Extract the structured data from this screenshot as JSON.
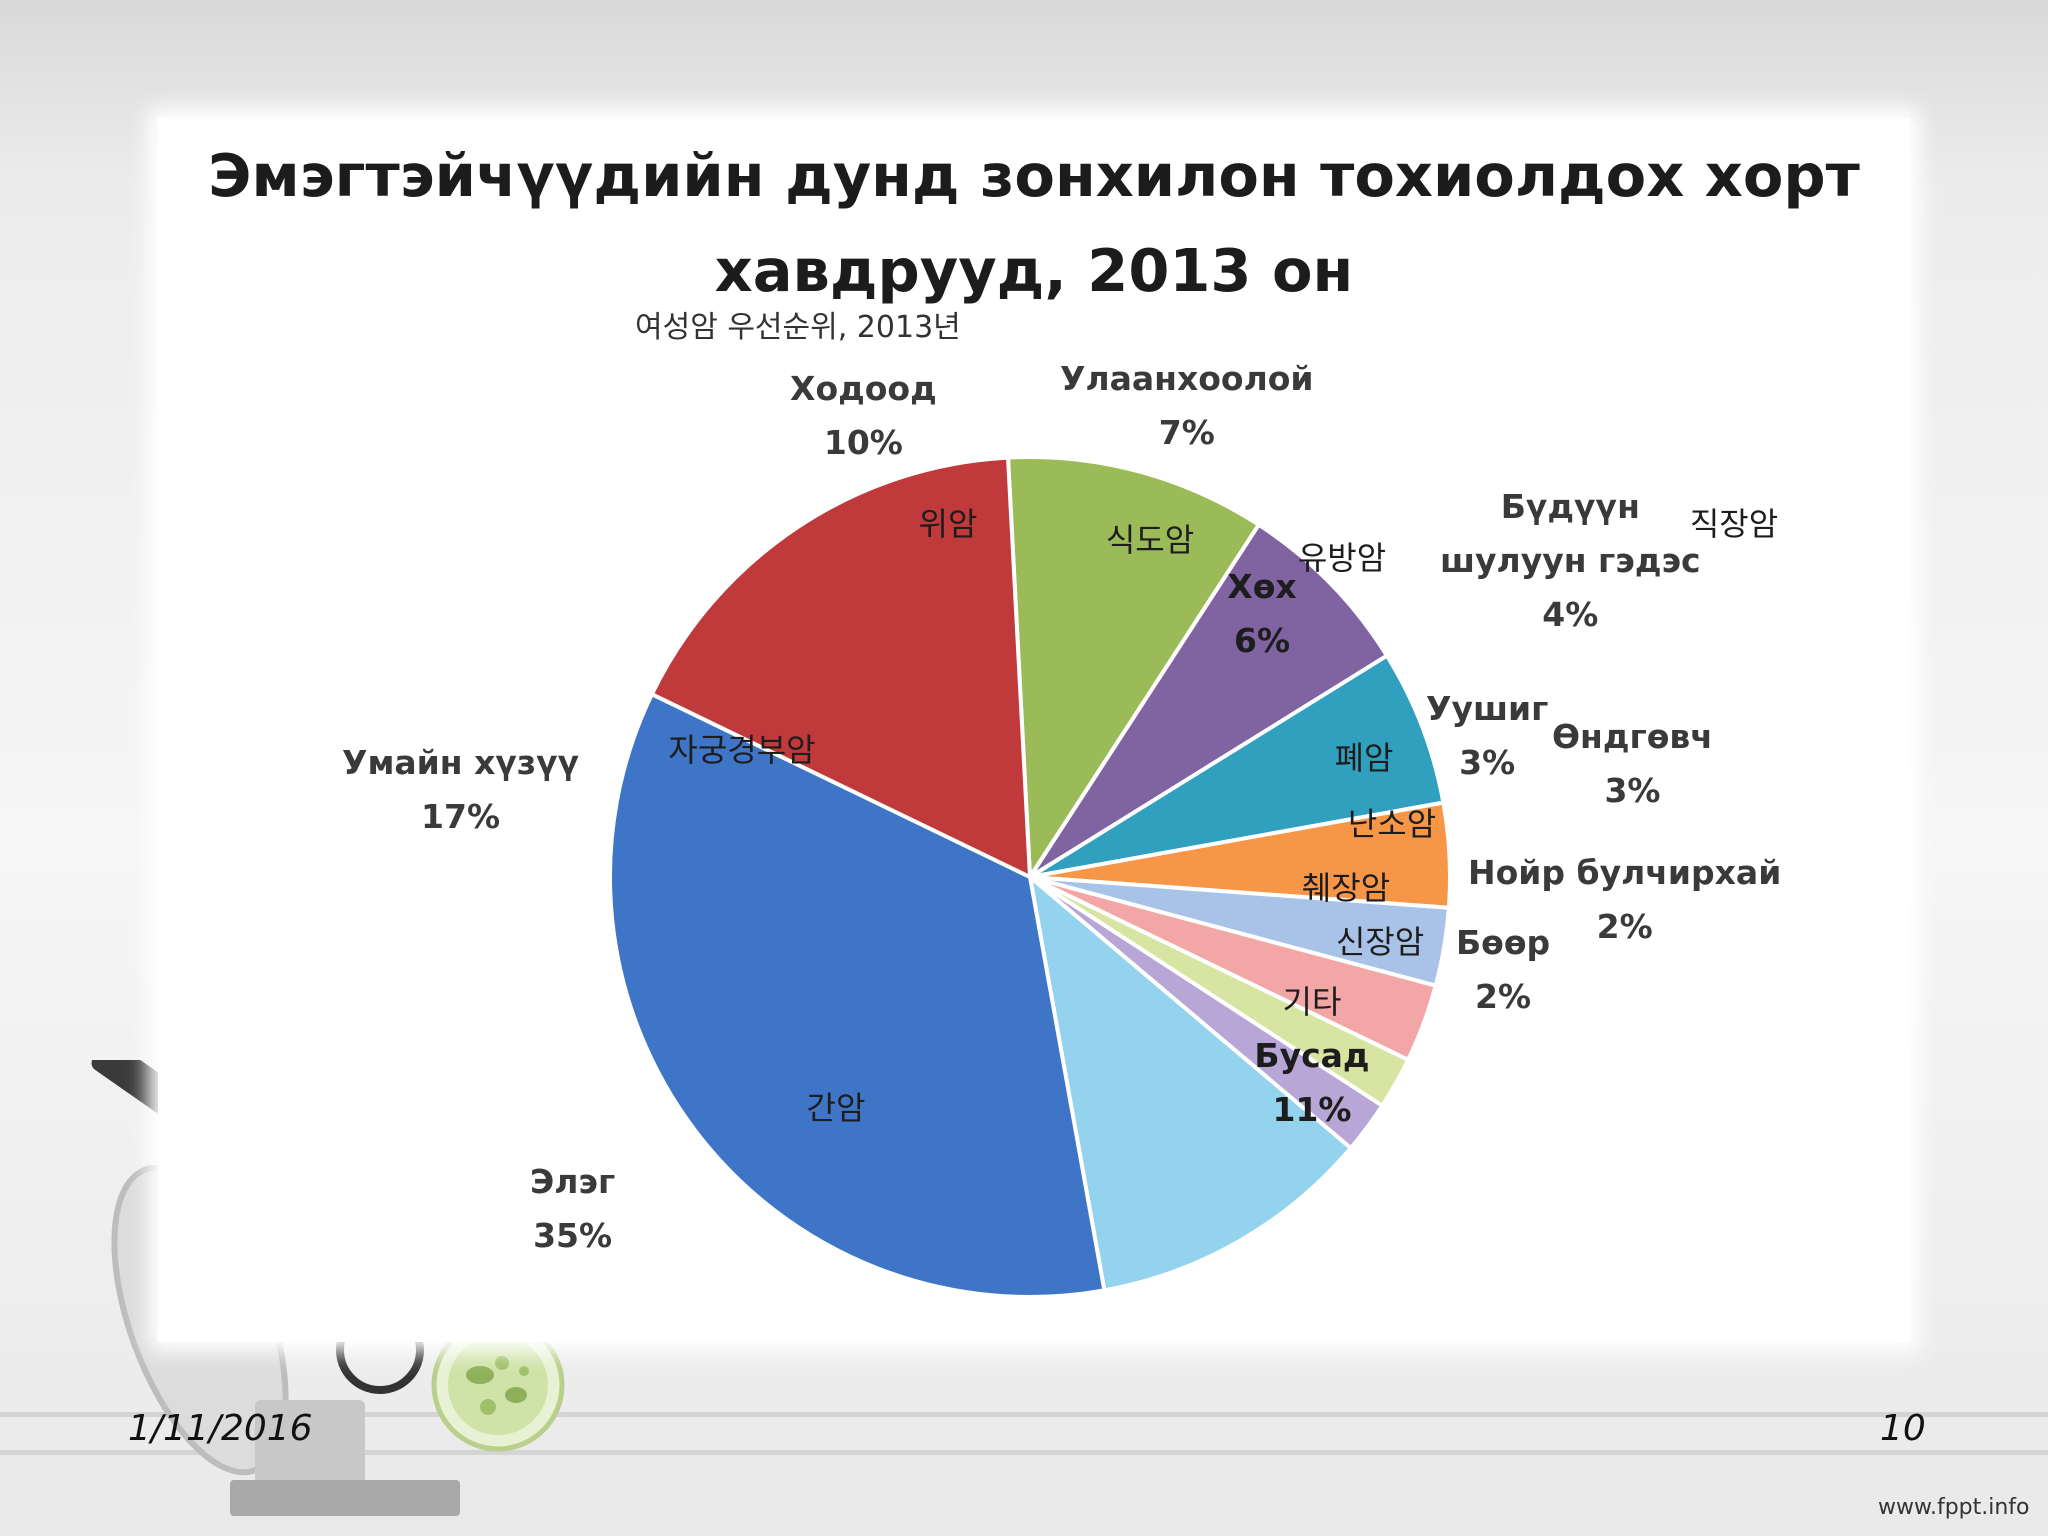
{
  "chart_data": {
    "type": "pie",
    "title": "Эмэгтэйчүүдийн дунд зонхилон тохиолдох хорт хавдрууд, 2013 он",
    "subtitle": "여성암 우선순위, 2013년",
    "slices": [
      {
        "id": "stomach",
        "label": "Ходоод",
        "korean": "위암",
        "value": 10,
        "pct_text": "10%",
        "color": "#9bbb59"
      },
      {
        "id": "esophagus",
        "label": "Улаанхоолой",
        "korean": "식도암",
        "value": 7,
        "pct_text": "7%",
        "color": "#8064a2"
      },
      {
        "id": "breast",
        "label": "Хөх",
        "korean": "유방암",
        "value": 6,
        "pct_text": "6%",
        "color": "#31a0bf"
      },
      {
        "id": "colorectal",
        "label": "Бүдүүн шулуун гэдэс",
        "korean": "직장암",
        "value": 4,
        "pct_text": "4%",
        "color": "#f79646"
      },
      {
        "id": "lung",
        "label": "Уушиг",
        "korean": "폐암",
        "value": 3,
        "pct_text": "3%",
        "color": "#a9c3e8"
      },
      {
        "id": "ovary",
        "label": "Өндгөвч",
        "korean": "난소암",
        "value": 3,
        "pct_text": "3%",
        "color": "#f2a6a6"
      },
      {
        "id": "pancreas",
        "label": "Нойр булчирхай",
        "korean": "췌장암",
        "value": 2,
        "pct_text": "2%",
        "color": "#d7e4a2"
      },
      {
        "id": "kidney",
        "label": "Бөөр",
        "korean": "신장암",
        "value": 2,
        "pct_text": "2%",
        "color": "#b7a6d6"
      },
      {
        "id": "other",
        "label": "Бусад",
        "korean": "기타",
        "value": 11,
        "pct_text": "11%",
        "color": "#93d3ee"
      },
      {
        "id": "liver",
        "label": "Элэг",
        "korean": "간암",
        "value": 35,
        "pct_text": "35%",
        "color": "#3f75c6"
      },
      {
        "id": "cervix",
        "label": "Умайн хүзүү",
        "korean": "자궁경부암",
        "value": 17,
        "pct_text": "17%",
        "color": "#c0393b"
      }
    ]
  },
  "footer": {
    "date": "1/11/2016",
    "page": "10",
    "brand": "www.fppt.info"
  },
  "decor": {
    "icons": [
      "microscope-icon",
      "petri-dish-icon"
    ]
  }
}
